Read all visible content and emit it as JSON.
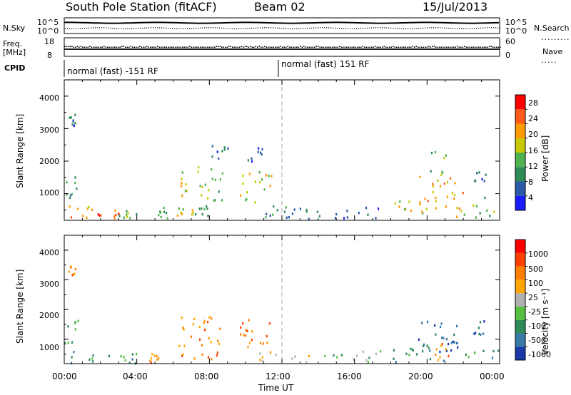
{
  "header": {
    "station": "South Pole Station (fitACF)",
    "beam": "Beam 02",
    "date": "15/Jul/2013"
  },
  "status_panels": {
    "nsky_label": "N.Sky",
    "nsearch_label": "N.Search",
    "freq_label_line1": "Freq.",
    "freq_label_line2": "[MHz]",
    "nave_label": "Nave",
    "cpid_label": "CPID",
    "nsky_ticks": [
      "10^5",
      "10^0"
    ],
    "nsearch_ticks": [
      "10^5",
      "10^0"
    ],
    "freq_ticks": [
      "18",
      "8"
    ],
    "nave_ticks": [
      "60",
      "0"
    ],
    "cpid_segments": [
      "normal (fast) -151 RF",
      "normal (fast) 151 RF"
    ]
  },
  "chart_data": [
    {
      "type": "heatmap",
      "name": "power",
      "xlabel": "Time UT",
      "ylabel": "Slant Range [km]",
      "xticks": [
        "00:00",
        "04:00",
        "08:00",
        "12:00",
        "16:00",
        "20:00",
        "00:00"
      ],
      "xlim_hours": [
        0,
        24
      ],
      "yticks": [
        1000,
        2000,
        3000,
        4000
      ],
      "ylim": [
        180,
        4500
      ],
      "colorbar_label": "Power [dB]",
      "colorbar_ticks": [
        "28",
        "24",
        "20",
        "16",
        "12",
        "8",
        "4"
      ],
      "colors": [
        "#1a1aff",
        "#2a5aa8",
        "#2e8b57",
        "#4fb34f",
        "#c8c800",
        "#ff9900",
        "#ff5a1a",
        "#ff0000"
      ],
      "echo_regions": [
        {
          "t": [
            0.0,
            1.5
          ],
          "r": [
            200,
            700
          ],
          "level": 5
        },
        {
          "t": [
            1.5,
            3.0
          ],
          "r": [
            200,
            650
          ],
          "level": 6
        },
        {
          "t": [
            3.0,
            4.0
          ],
          "r": [
            250,
            600
          ],
          "level": 3
        },
        {
          "t": [
            4.5,
            5.7
          ],
          "r": [
            200,
            600
          ],
          "level": 3
        },
        {
          "t": [
            6.2,
            7.2
          ],
          "r": [
            250,
            600
          ],
          "level": 4
        },
        {
          "t": [
            7.2,
            8.2
          ],
          "r": [
            300,
            700
          ],
          "level": 2
        },
        {
          "t": [
            0.0,
            0.8
          ],
          "r": [
            900,
            1800
          ],
          "level": 2
        },
        {
          "t": [
            6.3,
            6.8
          ],
          "r": [
            900,
            1700
          ],
          "level": 4
        },
        {
          "t": [
            6.8,
            8.7
          ],
          "r": [
            800,
            1900
          ],
          "level": 3
        },
        {
          "t": [
            9.6,
            11.4
          ],
          "r": [
            700,
            1800
          ],
          "level": 4
        },
        {
          "t": [
            10.1,
            10.9
          ],
          "r": [
            2000,
            2600
          ],
          "level": 1
        },
        {
          "t": [
            8.0,
            9.0
          ],
          "r": [
            2100,
            2600
          ],
          "level": 1
        },
        {
          "t": [
            11.0,
            12.2
          ],
          "r": [
            300,
            700
          ],
          "level": 2
        },
        {
          "t": [
            12.2,
            13.8
          ],
          "r": [
            250,
            600
          ],
          "level": 2
        },
        {
          "t": [
            13.8,
            17.5
          ],
          "r": [
            250,
            650
          ],
          "level": 1
        },
        {
          "t": [
            18.2,
            20.0
          ],
          "r": [
            250,
            900
          ],
          "level": 4
        },
        {
          "t": [
            19.5,
            22.0
          ],
          "r": [
            300,
            1600
          ],
          "level": 5
        },
        {
          "t": [
            20.0,
            21.0
          ],
          "r": [
            1600,
            2400
          ],
          "level": 3
        },
        {
          "t": [
            22.0,
            24.0
          ],
          "r": [
            250,
            700
          ],
          "level": 3
        },
        {
          "t": [
            22.5,
            23.2
          ],
          "r": [
            900,
            1700
          ],
          "level": 1
        },
        {
          "t": [
            0.2,
            0.6
          ],
          "r": [
            3100,
            3500
          ],
          "level": 1
        }
      ]
    },
    {
      "type": "heatmap",
      "name": "velocity",
      "xlabel": "Time UT",
      "ylabel": "Slant Range [km]",
      "xticks": [
        "00:00",
        "04:00",
        "08:00",
        "12:00",
        "16:00",
        "20:00",
        "00:00"
      ],
      "xlim_hours": [
        0,
        24
      ],
      "yticks": [
        1000,
        2000,
        3000,
        4000
      ],
      "ylim": [
        180,
        4500
      ],
      "colorbar_label": "Velocity [m s⁻¹]",
      "colorbar_ticks": [
        "1000",
        "500",
        "100",
        "25",
        "-25",
        "-100",
        "-500",
        "-1000"
      ],
      "colors": [
        "#1a3aa8",
        "#3a78a8",
        "#2e8b57",
        "#55c040",
        "#b0b0b0",
        "#ffa500",
        "#ff8000",
        "#ff4000",
        "#ff0000"
      ],
      "echo_regions": [
        {
          "t": [
            0.0,
            4.2
          ],
          "r": [
            200,
            650
          ],
          "level": 2
        },
        {
          "t": [
            0.0,
            0.8
          ],
          "r": [
            900,
            1800
          ],
          "level": 2
        },
        {
          "t": [
            4.5,
            5.6
          ],
          "r": [
            200,
            600
          ],
          "level": 6
        },
        {
          "t": [
            6.3,
            8.7
          ],
          "r": [
            800,
            1900
          ],
          "level": 6
        },
        {
          "t": [
            9.6,
            11.4
          ],
          "r": [
            700,
            1800
          ],
          "level": 6
        },
        {
          "t": [
            6.4,
            9.0
          ],
          "r": [
            300,
            600
          ],
          "level": 6
        },
        {
          "t": [
            10.5,
            13.8
          ],
          "r": [
            250,
            600
          ],
          "level": 5
        },
        {
          "t": [
            13.8,
            17.5
          ],
          "r": [
            250,
            650
          ],
          "level": 3
        },
        {
          "t": [
            18.0,
            20.2
          ],
          "r": [
            250,
            900
          ],
          "level": 2
        },
        {
          "t": [
            19.5,
            21.8
          ],
          "r": [
            300,
            1700
          ],
          "level": 1
        },
        {
          "t": [
            20.2,
            21.2
          ],
          "r": [
            300,
            900
          ],
          "level": 6
        },
        {
          "t": [
            22.0,
            24.0
          ],
          "r": [
            250,
            700
          ],
          "level": 2
        },
        {
          "t": [
            22.5,
            23.2
          ],
          "r": [
            900,
            1700
          ],
          "level": 1
        },
        {
          "t": [
            0.2,
            0.6
          ],
          "r": [
            3100,
            3500
          ],
          "level": 6
        }
      ]
    }
  ]
}
